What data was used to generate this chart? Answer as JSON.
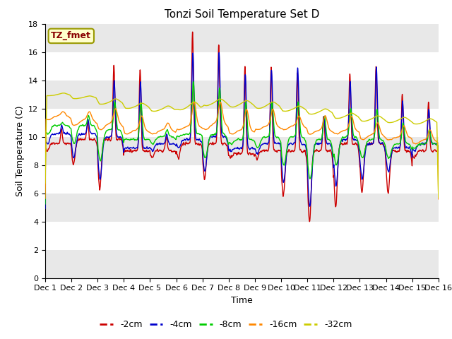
{
  "title": "Tonzi Soil Temperature Set D",
  "xlabel": "Time",
  "ylabel": "Soil Temperature (C)",
  "ylim": [
    0,
    18
  ],
  "xlim": [
    0,
    15
  ],
  "yticks": [
    0,
    2,
    4,
    6,
    8,
    10,
    12,
    14,
    16,
    18
  ],
  "xtick_labels": [
    "Dec 1",
    "Dec 2",
    "Dec 3",
    "Dec 4",
    "Dec 5",
    "Dec 6",
    "Dec 7",
    "Dec 8",
    "Dec 9",
    "Dec 10",
    "Dec 11",
    "Dec 12",
    "Dec 13",
    "Dec 14",
    "Dec 15",
    "Dec 16"
  ],
  "colors": {
    "2cm": "#cc0000",
    "4cm": "#0000cc",
    "8cm": "#00cc00",
    "16cm": "#ff8800",
    "32cm": "#cccc00"
  },
  "legend_labels": [
    "-2cm",
    "-4cm",
    "-8cm",
    "-16cm",
    "-32cm"
  ],
  "annotation": "TZ_fmet",
  "annotation_color": "#880000",
  "annotation_bg": "#ffffcc",
  "annotation_edge": "#999900",
  "fig_bg": "#ffffff",
  "ax_bg": "#ffffff",
  "stripe_color": "#e8e8e8",
  "grid_color": "#cccccc",
  "linewidth": 1.0,
  "title_fontsize": 11,
  "axis_label_fontsize": 9,
  "tick_fontsize": 8,
  "legend_fontsize": 9,
  "n_points": 3000,
  "days": 15
}
